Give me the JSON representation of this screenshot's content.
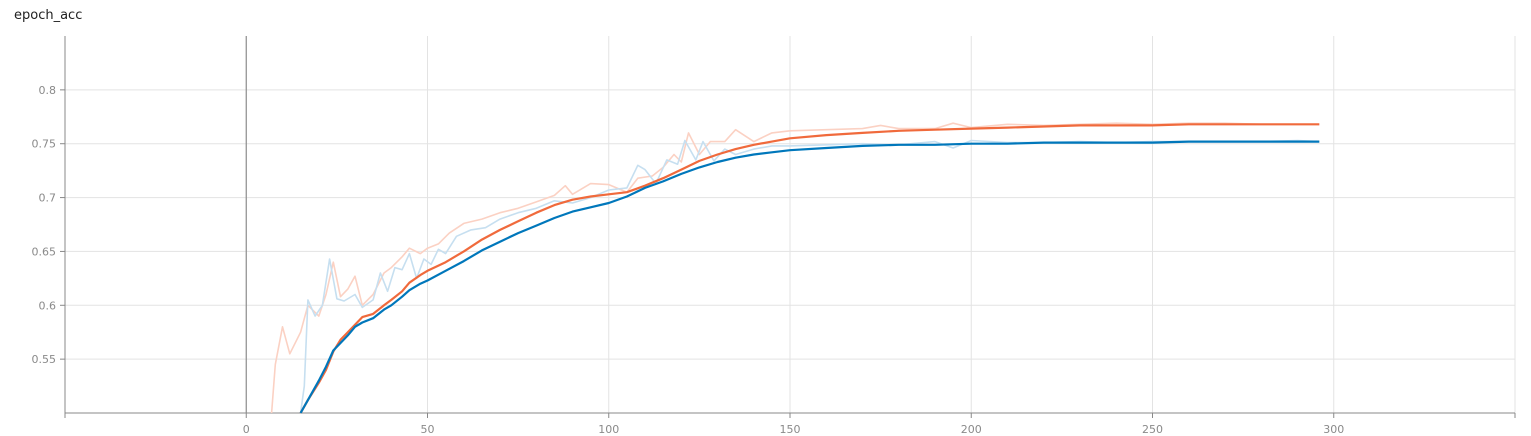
{
  "title": "epoch_acc",
  "colors": {
    "blue": "#0077bb",
    "blue_raw": "#c6dff0",
    "orange": "#f06a3c",
    "orange_raw": "#fbd1c3",
    "grid": "#e3e3e3",
    "axis": "#888888",
    "zero_line": "#8c8c8c"
  },
  "chart_data": {
    "type": "line",
    "title": "epoch_acc",
    "xlim": [
      -50,
      350
    ],
    "ylim": [
      0.5,
      0.85
    ],
    "xticks": [
      0,
      50,
      100,
      150,
      200,
      250,
      300
    ],
    "yticks": [
      0.55,
      0.6,
      0.65,
      0.7,
      0.75,
      0.8
    ],
    "xtick_labels": [
      "0",
      "50",
      "100",
      "150",
      "200",
      "250",
      "300"
    ],
    "ytick_labels": [
      "0.55",
      "0.6",
      "0.65",
      "0.7",
      "0.75",
      "0.8"
    ],
    "grid": true,
    "series": [
      {
        "color": "#f06a3c",
        "raw_color": "#fbd1c3",
        "raw": [
          [
            7,
            0.5
          ],
          [
            8,
            0.545
          ],
          [
            10,
            0.58
          ],
          [
            12,
            0.555
          ],
          [
            15,
            0.575
          ],
          [
            17,
            0.6
          ],
          [
            20,
            0.59
          ],
          [
            22,
            0.61
          ],
          [
            24,
            0.64
          ],
          [
            26,
            0.608
          ],
          [
            28,
            0.615
          ],
          [
            30,
            0.627
          ],
          [
            32,
            0.6
          ],
          [
            35,
            0.61
          ],
          [
            38,
            0.63
          ],
          [
            40,
            0.635
          ],
          [
            43,
            0.645
          ],
          [
            45,
            0.653
          ],
          [
            48,
            0.648
          ],
          [
            50,
            0.653
          ],
          [
            53,
            0.657
          ],
          [
            56,
            0.667
          ],
          [
            60,
            0.676
          ],
          [
            65,
            0.68
          ],
          [
            70,
            0.686
          ],
          [
            75,
            0.69
          ],
          [
            80,
            0.696
          ],
          [
            85,
            0.702
          ],
          [
            88,
            0.711
          ],
          [
            90,
            0.703
          ],
          [
            95,
            0.713
          ],
          [
            100,
            0.712
          ],
          [
            105,
            0.705
          ],
          [
            108,
            0.718
          ],
          [
            112,
            0.72
          ],
          [
            115,
            0.728
          ],
          [
            118,
            0.74
          ],
          [
            120,
            0.733
          ],
          [
            122,
            0.76
          ],
          [
            125,
            0.74
          ],
          [
            128,
            0.752
          ],
          [
            132,
            0.752
          ],
          [
            135,
            0.763
          ],
          [
            140,
            0.752
          ],
          [
            145,
            0.76
          ],
          [
            150,
            0.762
          ],
          [
            160,
            0.763
          ],
          [
            170,
            0.764
          ],
          [
            175,
            0.767
          ],
          [
            180,
            0.764
          ],
          [
            190,
            0.764
          ],
          [
            195,
            0.769
          ],
          [
            200,
            0.765
          ],
          [
            210,
            0.768
          ],
          [
            220,
            0.767
          ],
          [
            230,
            0.768
          ],
          [
            240,
            0.769
          ],
          [
            250,
            0.768
          ],
          [
            260,
            0.769
          ],
          [
            270,
            0.769
          ],
          [
            280,
            0.768
          ],
          [
            290,
            0.768
          ],
          [
            296,
            0.768
          ]
        ],
        "smooth": [
          [
            15,
            0.5
          ],
          [
            17,
            0.512
          ],
          [
            20,
            0.528
          ],
          [
            22,
            0.54
          ],
          [
            24,
            0.557
          ],
          [
            26,
            0.568
          ],
          [
            28,
            0.575
          ],
          [
            30,
            0.582
          ],
          [
            32,
            0.589
          ],
          [
            35,
            0.592
          ],
          [
            38,
            0.6
          ],
          [
            40,
            0.605
          ],
          [
            43,
            0.613
          ],
          [
            45,
            0.621
          ],
          [
            48,
            0.628
          ],
          [
            50,
            0.632
          ],
          [
            55,
            0.64
          ],
          [
            60,
            0.65
          ],
          [
            65,
            0.661
          ],
          [
            70,
            0.67
          ],
          [
            75,
            0.678
          ],
          [
            80,
            0.686
          ],
          [
            85,
            0.693
          ],
          [
            90,
            0.698
          ],
          [
            95,
            0.701
          ],
          [
            100,
            0.703
          ],
          [
            105,
            0.705
          ],
          [
            110,
            0.711
          ],
          [
            115,
            0.718
          ],
          [
            120,
            0.726
          ],
          [
            125,
            0.734
          ],
          [
            130,
            0.74
          ],
          [
            135,
            0.745
          ],
          [
            140,
            0.749
          ],
          [
            145,
            0.752
          ],
          [
            150,
            0.755
          ],
          [
            160,
            0.758
          ],
          [
            170,
            0.76
          ],
          [
            180,
            0.762
          ],
          [
            190,
            0.763
          ],
          [
            200,
            0.764
          ],
          [
            210,
            0.765
          ],
          [
            220,
            0.766
          ],
          [
            230,
            0.767
          ],
          [
            240,
            0.767
          ],
          [
            250,
            0.767
          ],
          [
            260,
            0.768
          ],
          [
            270,
            0.768
          ],
          [
            280,
            0.768
          ],
          [
            290,
            0.768
          ],
          [
            296,
            0.768
          ]
        ]
      },
      {
        "color": "#0077bb",
        "raw_color": "#c6dff0",
        "raw": [
          [
            15,
            0.5
          ],
          [
            16,
            0.525
          ],
          [
            17,
            0.605
          ],
          [
            19,
            0.59
          ],
          [
            21,
            0.6
          ],
          [
            23,
            0.643
          ],
          [
            25,
            0.606
          ],
          [
            27,
            0.604
          ],
          [
            30,
            0.61
          ],
          [
            32,
            0.598
          ],
          [
            35,
            0.605
          ],
          [
            37,
            0.63
          ],
          [
            39,
            0.613
          ],
          [
            41,
            0.635
          ],
          [
            43,
            0.633
          ],
          [
            45,
            0.648
          ],
          [
            47,
            0.625
          ],
          [
            49,
            0.643
          ],
          [
            51,
            0.638
          ],
          [
            53,
            0.652
          ],
          [
            55,
            0.648
          ],
          [
            58,
            0.664
          ],
          [
            62,
            0.67
          ],
          [
            66,
            0.672
          ],
          [
            70,
            0.68
          ],
          [
            75,
            0.686
          ],
          [
            80,
            0.69
          ],
          [
            85,
            0.697
          ],
          [
            90,
            0.695
          ],
          [
            95,
            0.7
          ],
          [
            100,
            0.707
          ],
          [
            105,
            0.709
          ],
          [
            108,
            0.73
          ],
          [
            110,
            0.726
          ],
          [
            113,
            0.713
          ],
          [
            116,
            0.735
          ],
          [
            119,
            0.731
          ],
          [
            121,
            0.753
          ],
          [
            124,
            0.735
          ],
          [
            126,
            0.752
          ],
          [
            129,
            0.734
          ],
          [
            132,
            0.745
          ],
          [
            135,
            0.74
          ],
          [
            140,
            0.745
          ],
          [
            145,
            0.748
          ],
          [
            150,
            0.748
          ],
          [
            160,
            0.749
          ],
          [
            170,
            0.75
          ],
          [
            180,
            0.749
          ],
          [
            190,
            0.752
          ],
          [
            195,
            0.746
          ],
          [
            200,
            0.753
          ],
          [
            210,
            0.751
          ],
          [
            220,
            0.751
          ],
          [
            230,
            0.752
          ],
          [
            240,
            0.751
          ],
          [
            250,
            0.752
          ],
          [
            260,
            0.752
          ],
          [
            270,
            0.752
          ],
          [
            280,
            0.752
          ],
          [
            290,
            0.753
          ],
          [
            296,
            0.752
          ]
        ],
        "smooth": [
          [
            15,
            0.5
          ],
          [
            17,
            0.512
          ],
          [
            20,
            0.53
          ],
          [
            22,
            0.543
          ],
          [
            24,
            0.558
          ],
          [
            26,
            0.565
          ],
          [
            28,
            0.572
          ],
          [
            30,
            0.58
          ],
          [
            32,
            0.584
          ],
          [
            35,
            0.588
          ],
          [
            38,
            0.596
          ],
          [
            40,
            0.6
          ],
          [
            43,
            0.608
          ],
          [
            45,
            0.614
          ],
          [
            48,
            0.62
          ],
          [
            50,
            0.623
          ],
          [
            55,
            0.632
          ],
          [
            60,
            0.641
          ],
          [
            65,
            0.651
          ],
          [
            70,
            0.659
          ],
          [
            75,
            0.667
          ],
          [
            80,
            0.674
          ],
          [
            85,
            0.681
          ],
          [
            90,
            0.687
          ],
          [
            95,
            0.691
          ],
          [
            100,
            0.695
          ],
          [
            105,
            0.701
          ],
          [
            110,
            0.709
          ],
          [
            115,
            0.715
          ],
          [
            120,
            0.722
          ],
          [
            125,
            0.728
          ],
          [
            130,
            0.733
          ],
          [
            135,
            0.737
          ],
          [
            140,
            0.74
          ],
          [
            145,
            0.742
          ],
          [
            150,
            0.744
          ],
          [
            160,
            0.746
          ],
          [
            170,
            0.748
          ],
          [
            180,
            0.749
          ],
          [
            190,
            0.749
          ],
          [
            200,
            0.75
          ],
          [
            210,
            0.75
          ],
          [
            220,
            0.751
          ],
          [
            230,
            0.751
          ],
          [
            240,
            0.751
          ],
          [
            250,
            0.751
          ],
          [
            260,
            0.752
          ],
          [
            270,
            0.752
          ],
          [
            280,
            0.752
          ],
          [
            290,
            0.752
          ],
          [
            296,
            0.752
          ]
        ]
      }
    ]
  }
}
